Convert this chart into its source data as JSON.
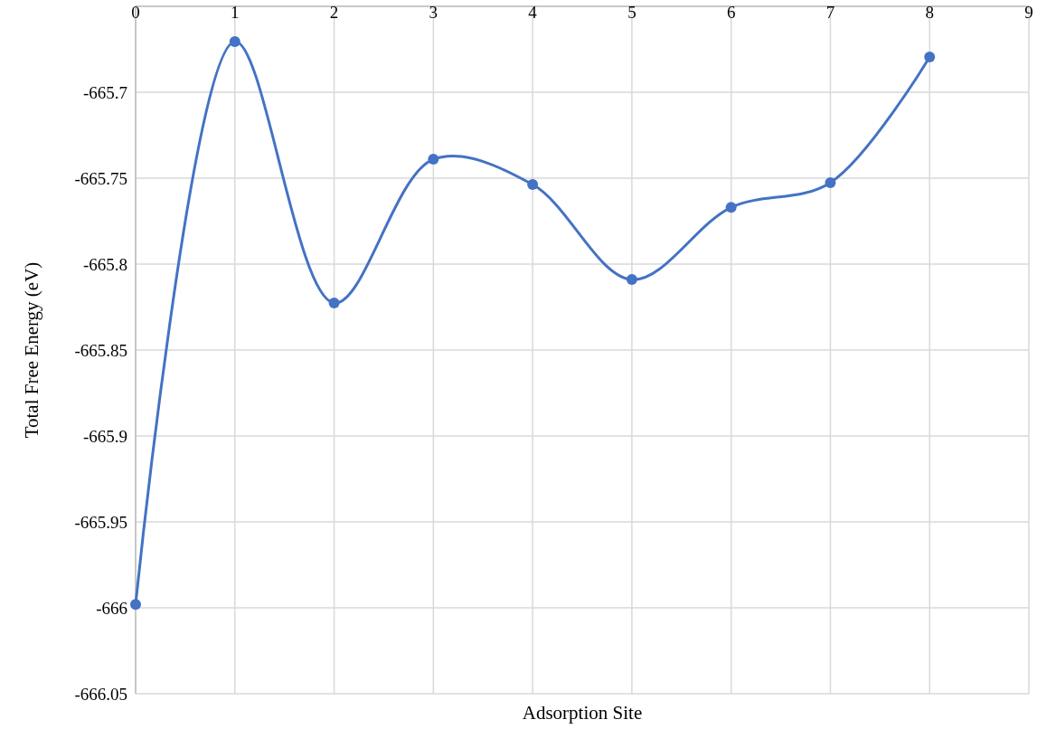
{
  "chart_data": {
    "type": "line",
    "xlabel": "Adsorption Site",
    "ylabel": "Total Free Energy (eV)",
    "x": [
      0,
      1,
      2,
      3,
      4,
      5,
      6,
      7,
      8
    ],
    "series": [
      {
        "color": "#4472c4",
        "values": [
          -665.998,
          -665.6705,
          -665.8226,
          -665.739,
          -665.7537,
          -665.809,
          -665.767,
          -665.7526,
          -665.6795
        ]
      }
    ],
    "xlim": [
      0,
      9
    ],
    "xticks": [
      0,
      1,
      2,
      3,
      4,
      5,
      6,
      7,
      8,
      9
    ],
    "ylim": [
      -666.05,
      -665.65
    ],
    "yticks": [
      {
        "value": -665.65,
        "label": null
      },
      -665.7,
      -665.75,
      -665.8,
      -665.85,
      -665.9,
      -665.95,
      -666,
      -666.05
    ],
    "grid": true,
    "marker": "circle",
    "line_style": "solid"
  }
}
